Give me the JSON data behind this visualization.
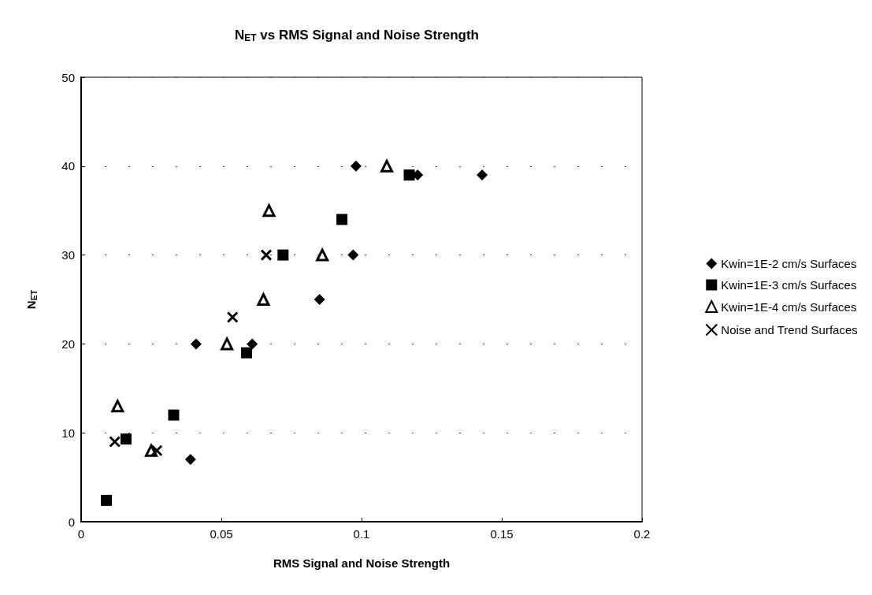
{
  "chart_data": {
    "type": "scatter",
    "title": "N$_{ET}$ vs RMS Signal and Noise Strength",
    "xlabel": "RMS Signal and Noise Strength",
    "ylabel": "N$_{ET}$",
    "xlim": [
      0,
      0.2
    ],
    "xticks": [
      0,
      0.05,
      0.1,
      0.15,
      0.2
    ],
    "ylim": [
      0,
      50
    ],
    "yticks": [
      0,
      10,
      20,
      30,
      40,
      50
    ],
    "grid": "y",
    "legend": "right",
    "series": [
      {
        "name": "Kwin=1E-2 cm/s Surfaces",
        "color": "#000000",
        "marker": "diamond",
        "x": [
          0.098,
          0.12,
          0.143,
          0.097,
          0.085,
          0.041,
          0.061,
          0.039
        ],
        "values": [
          40,
          39,
          39,
          30,
          25,
          20,
          20,
          7
        ]
      },
      {
        "name": "Kwin=1E-3 cm/s Surfaces",
        "color": "#000000",
        "marker": "square",
        "x": [
          0.117,
          0.093,
          0.072,
          0.059,
          0.033,
          0.016,
          0.009
        ],
        "values": [
          39,
          34,
          30,
          19,
          12,
          9.3,
          2.4
        ]
      },
      {
        "name": "Kwin=1E-4 cm/s Surfaces",
        "color": "#000000",
        "marker": "triangle",
        "x": [
          0.109,
          0.067,
          0.086,
          0.065,
          0.052,
          0.013,
          0.025
        ],
        "values": [
          40,
          35,
          30,
          25,
          20,
          13,
          8
        ]
      },
      {
        "name": "Noise and Trend Surfaces",
        "color": "#000000",
        "marker": "cross",
        "x": [
          0.066,
          0.054,
          0.012,
          0.027
        ],
        "values": [
          30,
          23,
          9,
          8
        ]
      }
    ]
  }
}
